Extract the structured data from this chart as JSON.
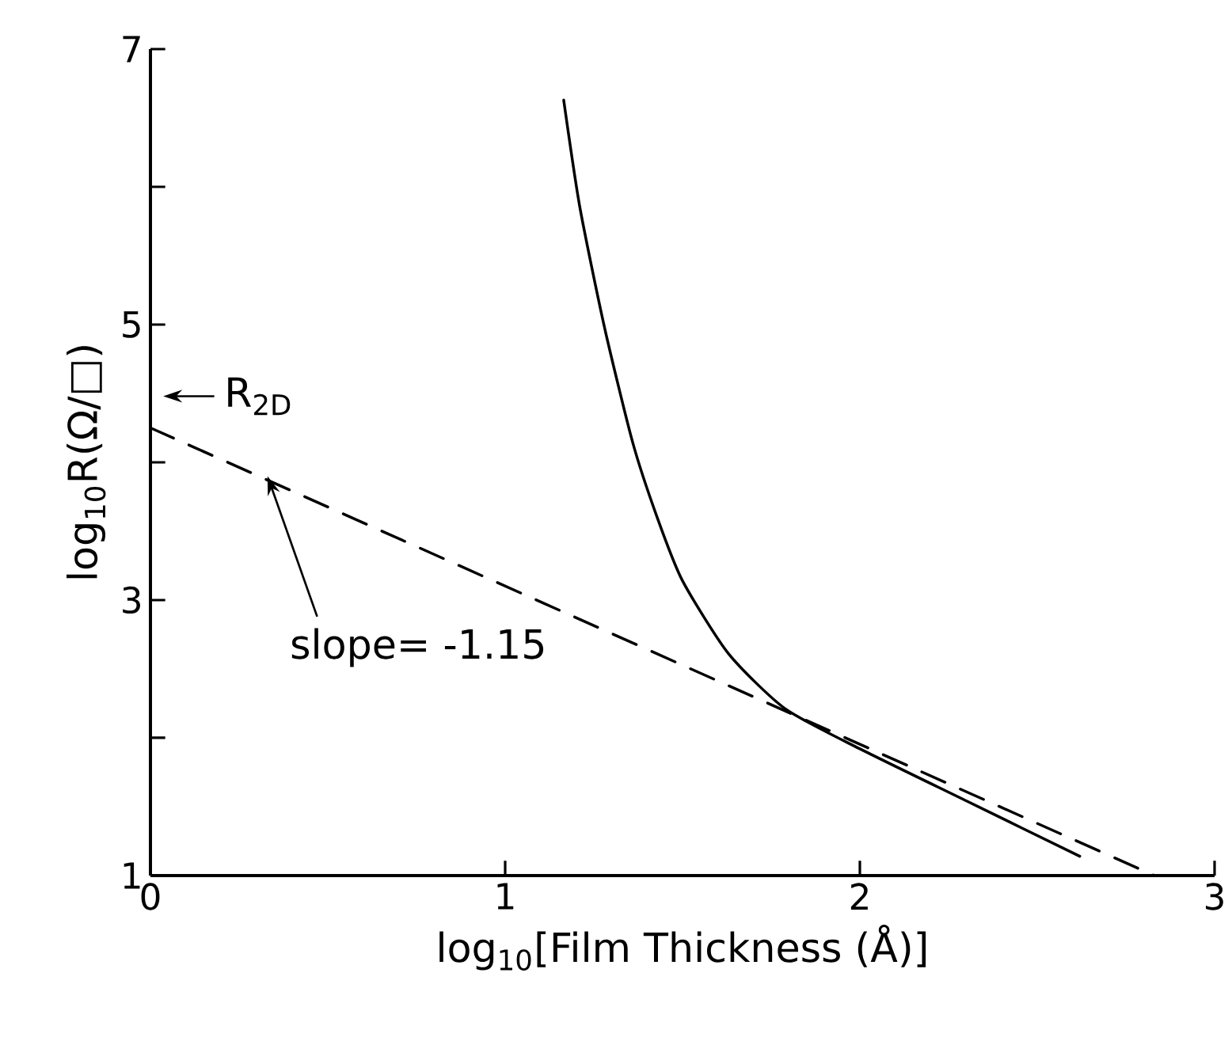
{
  "chart_data": {
    "type": "line",
    "xlabel": "log$_{10}$[Film Thickness (Å)]",
    "ylabel": "log$_{10}$R(Ω/□)",
    "xlim": [
      0,
      3
    ],
    "ylim": [
      1,
      7
    ],
    "xticks": [
      0,
      1,
      2,
      3
    ],
    "yticks": [
      1,
      {
        "value": 2,
        "label": null
      },
      3,
      {
        "value": 4,
        "label": null
      },
      5,
      {
        "value": 6,
        "label": null
      },
      7
    ],
    "marker": "none",
    "series": [
      {
        "color": "#000000",
        "line_style": "solid",
        "x": [
          1.165,
          1.21,
          1.28,
          1.36,
          1.43,
          1.5,
          1.63,
          1.79,
          2.0,
          2.31,
          2.62
        ],
        "values": [
          6.63,
          5.86,
          4.98,
          4.14,
          3.59,
          3.14,
          2.61,
          2.21,
          1.92,
          1.53,
          1.14
        ]
      },
      {
        "color": "#000000",
        "line_style": "dashed",
        "x": [
          0,
          2.83
        ],
        "values": [
          4.25,
          1.0
        ]
      }
    ],
    "annotations": [
      "R$_{2D}$",
      {
        "text": "slope= -1.15",
        "x": 0.32,
        "y": 3.88
      }
    ]
  }
}
